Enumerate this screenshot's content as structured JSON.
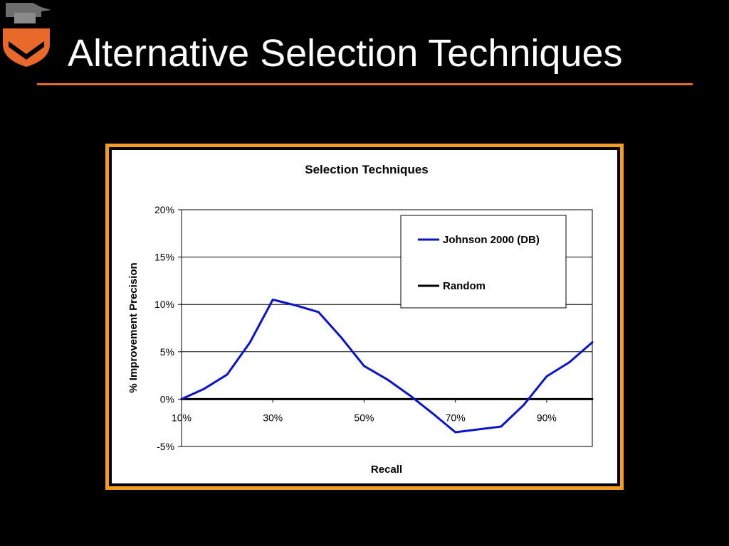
{
  "slide": {
    "title": "Alternative Selection Techniques",
    "accent_color": "#e8692a",
    "frame_color": "#f39c1f",
    "logo_icon": "princeton-shield-icon"
  },
  "chart_data": {
    "type": "line",
    "title": "Selection Techniques",
    "xlabel": "Recall",
    "ylabel": "% Improvement Precision",
    "x_tick_labels": [
      "10%",
      "30%",
      "50%",
      "70%",
      "90%"
    ],
    "y_tick_labels": [
      "20%",
      "15%",
      "10%",
      "5%",
      "0%",
      "-5%"
    ],
    "x_ticks": [
      10,
      30,
      50,
      70,
      90
    ],
    "y_ticks": [
      20,
      15,
      10,
      5,
      0,
      -5
    ],
    "xlim": [
      10,
      100
    ],
    "ylim": [
      -5,
      20
    ],
    "grid": true,
    "legend": "top-right",
    "series": [
      {
        "name": "Johnson 2000 (DB)",
        "color": "#0a14c8",
        "x": [
          10,
          15,
          20,
          25,
          30,
          35,
          40,
          45,
          50,
          55,
          60,
          65,
          70,
          75,
          80,
          85,
          90,
          95,
          100
        ],
        "y": [
          0.0,
          1.1,
          2.6,
          6.0,
          10.5,
          9.9,
          9.2,
          6.5,
          3.5,
          2.1,
          0.4,
          -1.5,
          -3.5,
          -3.2,
          -2.9,
          -0.6,
          2.4,
          3.9,
          6.0
        ]
      },
      {
        "name": "Random",
        "color": "#000000",
        "x": [
          10,
          100
        ],
        "y": [
          0,
          0
        ]
      }
    ]
  }
}
